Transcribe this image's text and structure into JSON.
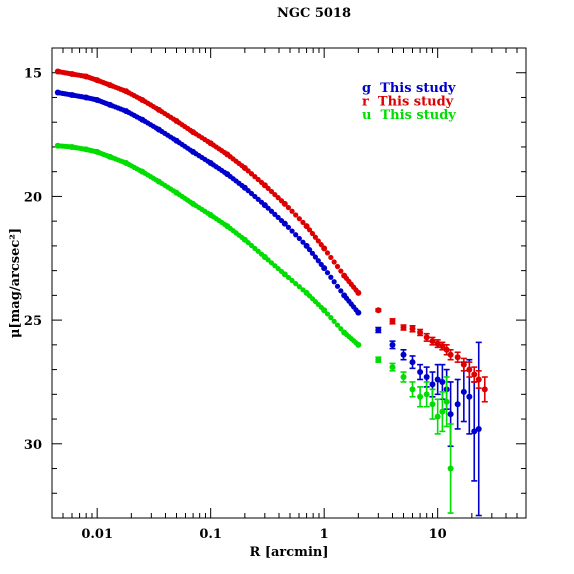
{
  "chart_data": {
    "type": "scatter",
    "title": "NGC 5018",
    "xlabel": "R [arcmin]",
    "ylabel": "μ[mag/arcsec²]",
    "x_scale": "log",
    "xlim": [
      0.004,
      60
    ],
    "ylim": [
      33,
      14
    ],
    "x_ticks": [
      0.01,
      0.1,
      1,
      10
    ],
    "x_tick_labels": [
      "0.01",
      "0.1",
      "1",
      "10"
    ],
    "y_ticks": [
      15,
      20,
      25,
      30
    ],
    "y_tick_labels": [
      "15",
      "20",
      "25",
      "30"
    ],
    "grid": false,
    "legend_position": "top-right",
    "legend_entries": [
      {
        "label": "g  This study",
        "color": "#0000cc"
      },
      {
        "label": "r  This study",
        "color": "#dd0000"
      },
      {
        "label": "u  This study",
        "color": "#00dd00"
      }
    ],
    "series": [
      {
        "name": "g",
        "color": "#0000cc",
        "x": [
          0.0045,
          0.006,
          0.008,
          0.01,
          0.013,
          0.018,
          0.025,
          0.035,
          0.05,
          0.07,
          0.1,
          0.14,
          0.2,
          0.3,
          0.45,
          0.7,
          1.0,
          1.5,
          2.0,
          3.0,
          4.0,
          5.0,
          6.0,
          7.0,
          8.0,
          9.0,
          10.0,
          11.0,
          12.0,
          13.0,
          15.0,
          17.0,
          19.0,
          21.0,
          23.0
        ],
        "y": [
          15.8,
          15.9,
          16.0,
          16.1,
          16.3,
          16.55,
          16.9,
          17.3,
          17.75,
          18.2,
          18.65,
          19.1,
          19.65,
          20.35,
          21.1,
          22.0,
          22.9,
          24.0,
          24.7,
          25.4,
          26.0,
          26.4,
          26.7,
          27.1,
          27.3,
          27.6,
          27.4,
          27.5,
          27.8,
          28.8,
          28.4,
          27.9,
          28.1,
          29.5,
          29.4
        ],
        "y_err": [
          0,
          0,
          0,
          0,
          0,
          0,
          0,
          0,
          0,
          0,
          0,
          0,
          0,
          0,
          0,
          0,
          0,
          0,
          0,
          0.1,
          0.15,
          0.2,
          0.25,
          0.3,
          0.4,
          0.5,
          0.6,
          0.7,
          0.8,
          1.3,
          1.0,
          1.2,
          1.5,
          2.0,
          3.5
        ]
      },
      {
        "name": "r",
        "color": "#dd0000",
        "x": [
          0.0045,
          0.006,
          0.008,
          0.01,
          0.013,
          0.018,
          0.025,
          0.035,
          0.05,
          0.07,
          0.1,
          0.14,
          0.2,
          0.3,
          0.45,
          0.7,
          1.0,
          1.5,
          2.0,
          3.0,
          4.0,
          5.0,
          6.0,
          7.0,
          8.0,
          9.0,
          10.0,
          11.0,
          12.0,
          13.0,
          15.0,
          17.0,
          19.0,
          21.0,
          23.0,
          26.0
        ],
        "y": [
          14.95,
          15.05,
          15.15,
          15.3,
          15.5,
          15.75,
          16.1,
          16.5,
          16.95,
          17.4,
          17.85,
          18.3,
          18.85,
          19.55,
          20.3,
          21.2,
          22.1,
          23.2,
          23.9,
          24.6,
          25.05,
          25.3,
          25.35,
          25.5,
          25.7,
          25.85,
          25.95,
          26.05,
          26.2,
          26.4,
          26.5,
          26.8,
          27.0,
          27.2,
          27.4,
          27.8
        ],
        "y_err": [
          0,
          0,
          0,
          0,
          0,
          0,
          0,
          0,
          0,
          0,
          0,
          0,
          0,
          0,
          0,
          0,
          0,
          0,
          0,
          0.05,
          0.1,
          0.1,
          0.12,
          0.12,
          0.15,
          0.15,
          0.15,
          0.15,
          0.2,
          0.2,
          0.2,
          0.25,
          0.3,
          0.3,
          0.35,
          0.5
        ]
      },
      {
        "name": "u",
        "color": "#00dd00",
        "x": [
          0.0045,
          0.006,
          0.008,
          0.01,
          0.013,
          0.018,
          0.025,
          0.035,
          0.05,
          0.07,
          0.1,
          0.14,
          0.2,
          0.3,
          0.45,
          0.7,
          1.0,
          1.5,
          2.0,
          3.0,
          4.0,
          5.0,
          6.0,
          7.0,
          8.0,
          9.0,
          10.0,
          11.0,
          12.0,
          13.0
        ],
        "y": [
          17.95,
          18.0,
          18.1,
          18.2,
          18.4,
          18.65,
          19.0,
          19.4,
          19.85,
          20.3,
          20.75,
          21.2,
          21.75,
          22.45,
          23.15,
          23.9,
          24.6,
          25.5,
          26.0,
          26.6,
          26.9,
          27.3,
          27.8,
          28.1,
          28.0,
          28.4,
          28.9,
          28.7,
          28.3,
          31.0
        ],
        "y_err": [
          0,
          0,
          0,
          0,
          0,
          0,
          0,
          0,
          0,
          0,
          0,
          0,
          0,
          0,
          0,
          0,
          0,
          0,
          0,
          0.1,
          0.15,
          0.2,
          0.3,
          0.4,
          0.5,
          0.6,
          0.7,
          0.8,
          1.0,
          1.8
        ]
      }
    ]
  }
}
